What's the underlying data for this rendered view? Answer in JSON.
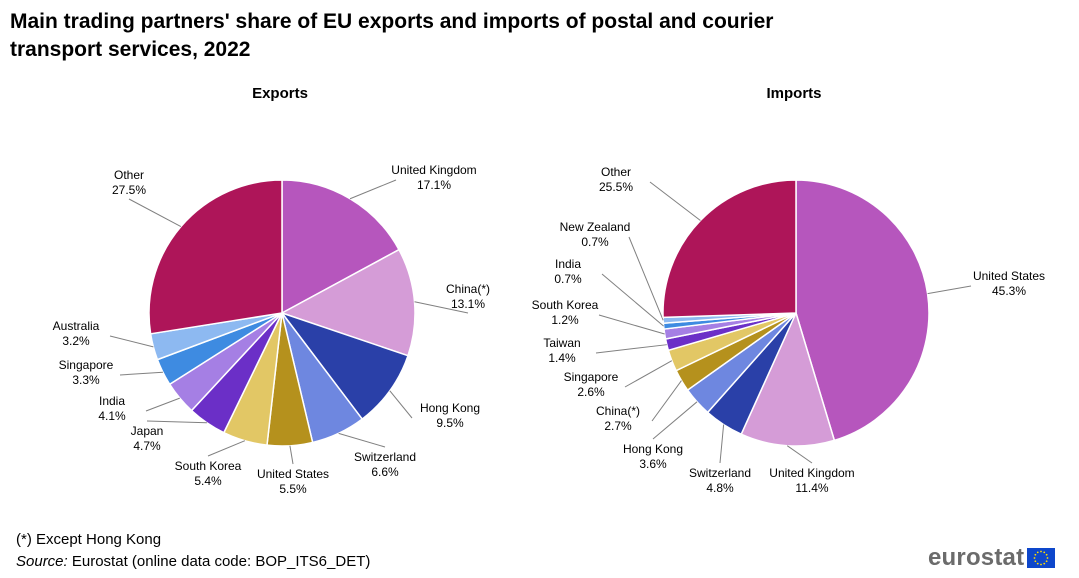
{
  "title": "Main trading partners' share of EU exports and imports of postal and courier transport services, 2022",
  "footnote": "(*) Except Hong Kong",
  "source_label": "Source:",
  "source_text": " Eurostat (online data code: BOP_ITS6_DET)",
  "logo_text": "eurostat",
  "chart_data": [
    {
      "type": "pie",
      "title": "Exports",
      "slices": [
        {
          "label": "United Kingdom",
          "value": 17.1,
          "display": "17.1%",
          "color": "#B656BD"
        },
        {
          "label": "China(*)",
          "value": 13.1,
          "display": "13.1%",
          "color": "#D59CD7"
        },
        {
          "label": "Hong Kong",
          "value": 9.5,
          "display": "9.5%",
          "color": "#2A40A8"
        },
        {
          "label": "Switzerland",
          "value": 6.6,
          "display": "6.6%",
          "color": "#6E87E0"
        },
        {
          "label": "United States",
          "value": 5.5,
          "display": "5.5%",
          "color": "#B5911D"
        },
        {
          "label": "South Korea",
          "value": 5.4,
          "display": "5.4%",
          "color": "#E2C765"
        },
        {
          "label": "Japan",
          "value": 4.7,
          "display": "4.7%",
          "color": "#6B2FC7"
        },
        {
          "label": "India",
          "value": 4.1,
          "display": "4.1%",
          "color": "#A57FE4"
        },
        {
          "label": "Singapore",
          "value": 3.3,
          "display": "3.3%",
          "color": "#3E8BE1"
        },
        {
          "label": "Australia",
          "value": 3.2,
          "display": "3.2%",
          "color": "#8DB9F1"
        },
        {
          "label": "Other",
          "value": 27.5,
          "display": "27.5%",
          "color": "#AE1559"
        }
      ]
    },
    {
      "type": "pie",
      "title": "Imports",
      "slices": [
        {
          "label": "United States",
          "value": 45.3,
          "display": "45.3%",
          "color": "#B656BD"
        },
        {
          "label": "United Kingdom",
          "value": 11.4,
          "display": "11.4%",
          "color": "#D59CD7"
        },
        {
          "label": "Switzerland",
          "value": 4.8,
          "display": "4.8%",
          "color": "#2A40A8"
        },
        {
          "label": "Hong Kong",
          "value": 3.6,
          "display": "3.6%",
          "color": "#6E87E0"
        },
        {
          "label": "China(*)",
          "value": 2.7,
          "display": "2.7%",
          "color": "#B5911D"
        },
        {
          "label": "Singapore",
          "value": 2.6,
          "display": "2.6%",
          "color": "#E2C765"
        },
        {
          "label": "Taiwan",
          "value": 1.4,
          "display": "1.4%",
          "color": "#6B2FC7"
        },
        {
          "label": "South Korea",
          "value": 1.2,
          "display": "1.2%",
          "color": "#A57FE4"
        },
        {
          "label": "India",
          "value": 0.7,
          "display": "0.7%",
          "color": "#3E8BE1"
        },
        {
          "label": "New Zealand",
          "value": 0.7,
          "display": "0.7%",
          "color": "#8DB9F1"
        },
        {
          "label": "Other",
          "value": 25.5,
          "display": "25.5%",
          "color": "#AE1559"
        }
      ]
    }
  ]
}
